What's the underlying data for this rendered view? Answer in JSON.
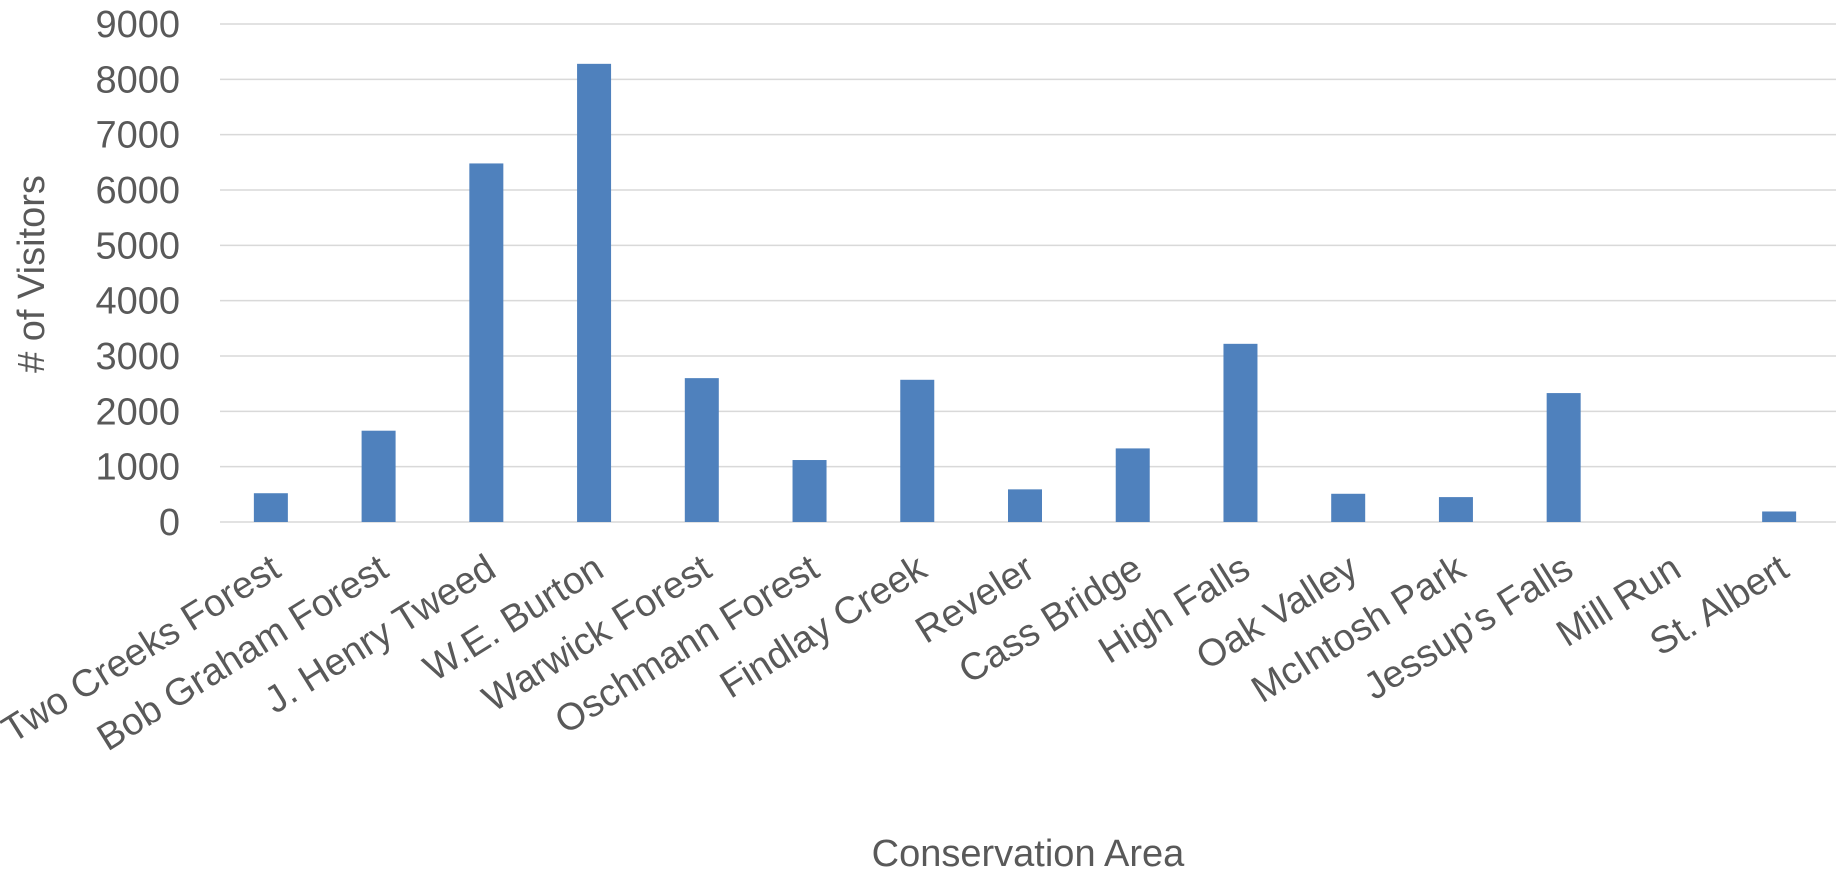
{
  "chart_data": {
    "type": "bar",
    "title": "",
    "xlabel": "Conservation Area",
    "ylabel": "# of Visitors",
    "ylim": [
      0,
      9000
    ],
    "yticks": [
      0,
      1000,
      2000,
      3000,
      4000,
      5000,
      6000,
      7000,
      8000,
      9000
    ],
    "grid": true,
    "legend": "none",
    "bar_color": "#4f81bd",
    "categories": [
      "Two Creeks Forest",
      "Bob Graham Forest",
      "J. Henry Tweed",
      "W.E. Burton",
      "Warwick Forest",
      "Oschmann Forest",
      "Findlay Creek",
      "Reveler",
      "Cass Bridge",
      "High Falls",
      "Oak Valley",
      "McIntosh Park",
      "Jessup's Falls",
      "Mill Run",
      "St. Albert"
    ],
    "values": [
      520,
      1650,
      6480,
      8280,
      2600,
      1120,
      2570,
      590,
      1330,
      3220,
      510,
      450,
      2330,
      0,
      190
    ]
  }
}
